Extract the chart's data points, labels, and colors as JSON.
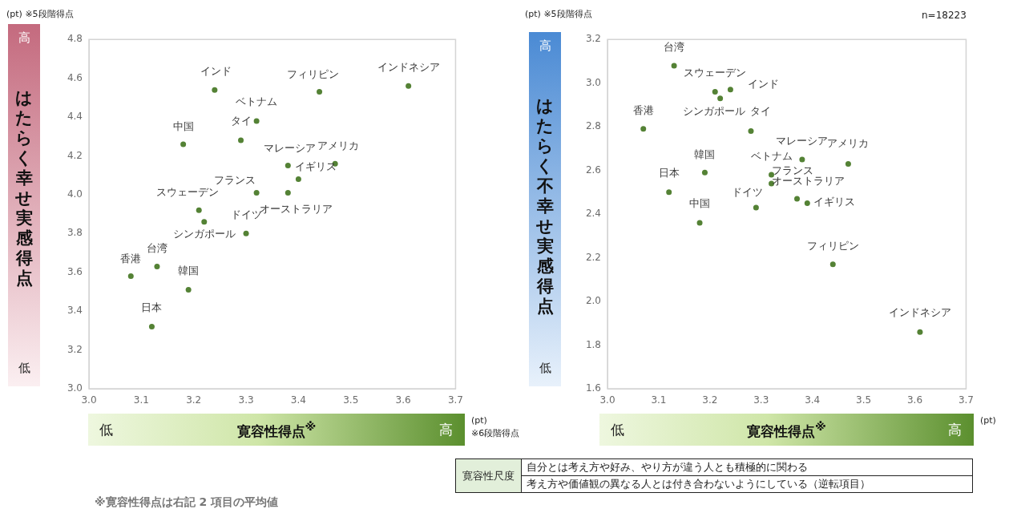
{
  "chart_data": [
    {
      "type": "scatter",
      "ylabel": "はたらく幸せ実感得点",
      "xlabel": "寛容性得点$^{※}$",
      "color": "#548235",
      "marker": "circle",
      "x": [
        3.24,
        3.44,
        3.61,
        3.32,
        3.29,
        3.18,
        3.38,
        3.4,
        3.47,
        3.32,
        3.38,
        3.21,
        3.22,
        3.3,
        3.08,
        3.13,
        3.19,
        3.12
      ],
      "values": [
        4.54,
        4.53,
        4.56,
        4.38,
        4.28,
        4.26,
        4.15,
        4.08,
        4.16,
        4.01,
        4.01,
        3.92,
        3.86,
        3.8,
        3.58,
        3.63,
        3.51,
        3.32
      ],
      "xlim": [
        3.0,
        3.7
      ],
      "xticks": [
        {
          "value": 3,
          "label": "3.0"
        },
        3.1,
        3.2,
        3.3,
        3.4,
        3.5,
        3.6,
        3.7
      ],
      "ylim": [
        3.0,
        4.8
      ],
      "yticks": [
        {
          "value": 3,
          "label": "3.0"
        },
        3.2,
        3.4,
        3.6,
        3.8,
        {
          "value": 4,
          "label": "4.0"
        },
        4.2,
        4.4,
        4.6,
        4.8
      ],
      "annotations": [
        {
          "text": "インド",
          "x": 3.24,
          "y": 4.54
        },
        {
          "text": "フィリピン",
          "x": 3.44,
          "y": 4.53
        },
        {
          "text": "インドネシア",
          "x": 3.61,
          "y": 4.56
        },
        {
          "text": "ベトナム",
          "x": 3.32,
          "y": 4.38
        },
        {
          "text": "タイ",
          "x": 3.29,
          "y": 4.28
        },
        {
          "text": "中国",
          "x": 3.18,
          "y": 4.26
        },
        {
          "text": "マレーシア",
          "x": 3.38,
          "y": 4.15
        },
        {
          "text": "イギリス",
          "x": 3.4,
          "y": 4.08
        },
        {
          "text": "アメリカ",
          "x": 3.47,
          "y": 4.16
        },
        {
          "text": "フランス",
          "x": 3.32,
          "y": 4.01
        },
        {
          "text": "オーストラリア",
          "x": 3.38,
          "y": 4.01
        },
        {
          "text": "スウェーデン",
          "x": 3.21,
          "y": 3.92
        },
        {
          "text": "シンガポール",
          "x": 3.22,
          "y": 3.86
        },
        {
          "text": "ドイツ",
          "x": 3.3,
          "y": 3.8
        },
        {
          "text": "香港",
          "x": 3.08,
          "y": 3.58
        },
        {
          "text": "台湾",
          "x": 3.13,
          "y": 3.63
        },
        {
          "text": "韓国",
          "x": 3.19,
          "y": 3.51
        },
        {
          "text": "日本",
          "x": 3.12,
          "y": 3.32
        },
        "(pt) ※5段階得点",
        "高",
        "低",
        "低",
        "高",
        "(pt)",
        "※6段階得点",
        "※寛容性得点は右記 2 項目の平均値"
      ]
    },
    {
      "type": "scatter",
      "ylabel": "はたらく不幸せ実感得点",
      "xlabel": "寛容性得点$^{※}$",
      "color": "#548235",
      "marker": "circle",
      "x": [
        3.24,
        3.44,
        3.61,
        3.32,
        3.28,
        3.18,
        3.38,
        3.39,
        3.47,
        3.32,
        3.37,
        3.21,
        3.22,
        3.29,
        3.07,
        3.13,
        3.19,
        3.12
      ],
      "values": [
        2.97,
        2.17,
        1.86,
        2.58,
        2.78,
        2.36,
        2.65,
        2.45,
        2.63,
        2.54,
        2.47,
        2.96,
        2.93,
        2.43,
        2.79,
        3.08,
        2.59,
        2.5
      ],
      "xlim": [
        3.0,
        3.7
      ],
      "xticks": [
        {
          "value": 3,
          "label": "3.0"
        },
        3.1,
        3.2,
        3.3,
        3.4,
        3.5,
        3.6,
        3.7
      ],
      "ylim": [
        1.6,
        3.2
      ],
      "yticks": [
        1.6,
        1.8,
        {
          "value": 2,
          "label": "2.0"
        },
        2.2,
        2.4,
        2.6,
        2.8,
        {
          "value": 3,
          "label": "3.0"
        },
        3.2
      ],
      "annotations": [
        {
          "text": "インド",
          "x": 3.24,
          "y": 2.97
        },
        {
          "text": "フィリピン",
          "x": 3.44,
          "y": 2.17
        },
        {
          "text": "インドネシア",
          "x": 3.61,
          "y": 1.86
        },
        {
          "text": "ベトナム",
          "x": 3.32,
          "y": 2.58
        },
        {
          "text": "タイ",
          "x": 3.28,
          "y": 2.78
        },
        {
          "text": "中国",
          "x": 3.18,
          "y": 2.36
        },
        {
          "text": "マレーシア",
          "x": 3.38,
          "y": 2.65
        },
        {
          "text": "イギリス",
          "x": 3.39,
          "y": 2.45
        },
        {
          "text": "アメリカ",
          "x": 3.47,
          "y": 2.63
        },
        {
          "text": "フランス",
          "x": 3.32,
          "y": 2.54
        },
        {
          "text": "オーストラリア",
          "x": 3.37,
          "y": 2.47
        },
        {
          "text": "スウェーデン",
          "x": 3.21,
          "y": 2.96
        },
        {
          "text": "シンガポール",
          "x": 3.22,
          "y": 2.93
        },
        {
          "text": "ドイツ",
          "x": 3.29,
          "y": 2.43
        },
        {
          "text": "香港",
          "x": 3.07,
          "y": 2.79
        },
        {
          "text": "台湾",
          "x": 3.13,
          "y": 3.08
        },
        {
          "text": "韓国",
          "x": 3.19,
          "y": 2.59
        },
        {
          "text": "日本",
          "x": 3.12,
          "y": 2.5
        },
        "(pt) ※5段階得点",
        "n=18223",
        "高",
        "低",
        "低",
        "高",
        "(pt)",
        "寛容性尺度",
        "自分とは考え方や好み、やり方が違う人とも積極的に関わる",
        "考え方や価値観の異なる人とは付き合わないようにしている（逆転項目）"
      ]
    }
  ]
}
